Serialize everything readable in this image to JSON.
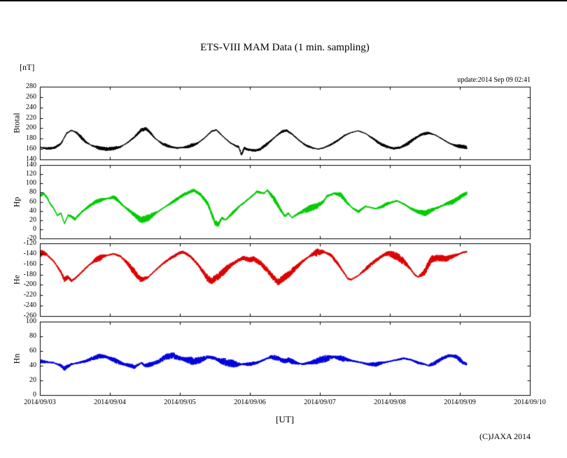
{
  "chart_data": {
    "type": "line",
    "title": "ETS-VIII MAM Data (1 min. sampling)",
    "y_unit_label": "[nT]",
    "update_label": "update:2014 Sep 09 02:41",
    "copyright": "(C)JAXA 2014",
    "x": {
      "label": "[UT]",
      "tick_labels": [
        "2014/09/03",
        "2014/09/04",
        "2014/09/05",
        "2014/09/06",
        "2014/09/07",
        "2014/09/08",
        "2014/09/09",
        "2014/09/10"
      ],
      "range_days": [
        0,
        7
      ],
      "grid": false,
      "unit": "days since 2014/09/03 00:00 UT"
    },
    "panels": [
      {
        "name": "Btotal",
        "color": "#000000",
        "ylim": [
          140,
          280
        ],
        "yticks": [
          280,
          260,
          240,
          220,
          200,
          180,
          160,
          140
        ],
        "noise_amplitude": 2.2,
        "points": [
          [
            0.0,
            163
          ],
          [
            0.1,
            161
          ],
          [
            0.2,
            162
          ],
          [
            0.3,
            170
          ],
          [
            0.38,
            190
          ],
          [
            0.45,
            196
          ],
          [
            0.52,
            192
          ],
          [
            0.58,
            184
          ],
          [
            0.65,
            174
          ],
          [
            0.75,
            166
          ],
          [
            0.85,
            162
          ],
          [
            0.95,
            160
          ],
          [
            1.05,
            161
          ],
          [
            1.15,
            164
          ],
          [
            1.25,
            172
          ],
          [
            1.35,
            183
          ],
          [
            1.45,
            197
          ],
          [
            1.52,
            199
          ],
          [
            1.58,
            191
          ],
          [
            1.65,
            180
          ],
          [
            1.75,
            170
          ],
          [
            1.85,
            165
          ],
          [
            1.95,
            162
          ],
          [
            2.05,
            163
          ],
          [
            2.15,
            166
          ],
          [
            2.25,
            171
          ],
          [
            2.35,
            181
          ],
          [
            2.45,
            194
          ],
          [
            2.52,
            197
          ],
          [
            2.58,
            189
          ],
          [
            2.65,
            180
          ],
          [
            2.72,
            172
          ],
          [
            2.8,
            166
          ],
          [
            2.84,
            164
          ],
          [
            2.88,
            149
          ],
          [
            2.92,
            162
          ],
          [
            2.97,
            159
          ],
          [
            3.02,
            158
          ],
          [
            3.08,
            157
          ],
          [
            3.15,
            160
          ],
          [
            3.25,
            170
          ],
          [
            3.35,
            182
          ],
          [
            3.45,
            193
          ],
          [
            3.52,
            196
          ],
          [
            3.6,
            189
          ],
          [
            3.7,
            177
          ],
          [
            3.8,
            167
          ],
          [
            3.9,
            162
          ],
          [
            3.97,
            160
          ],
          [
            4.05,
            162
          ],
          [
            4.15,
            168
          ],
          [
            4.25,
            176
          ],
          [
            4.35,
            186
          ],
          [
            4.45,
            192
          ],
          [
            4.55,
            195
          ],
          [
            4.65,
            190
          ],
          [
            4.75,
            181
          ],
          [
            4.85,
            171
          ],
          [
            4.95,
            165
          ],
          [
            5.05,
            161
          ],
          [
            5.15,
            163
          ],
          [
            5.25,
            170
          ],
          [
            5.35,
            180
          ],
          [
            5.45,
            188
          ],
          [
            5.55,
            191
          ],
          [
            5.65,
            187
          ],
          [
            5.75,
            179
          ],
          [
            5.85,
            171
          ],
          [
            5.95,
            166
          ],
          [
            6.02,
            165
          ],
          [
            6.1,
            163
          ]
        ]
      },
      {
        "name": "Hp",
        "color": "#00cc00",
        "ylim": [
          -20,
          140
        ],
        "yticks": [
          140,
          120,
          100,
          80,
          60,
          40,
          20,
          0,
          -20
        ],
        "noise_amplitude": 4.5,
        "points": [
          [
            0.0,
            72
          ],
          [
            0.05,
            78
          ],
          [
            0.1,
            70
          ],
          [
            0.15,
            55
          ],
          [
            0.2,
            45
          ],
          [
            0.25,
            30
          ],
          [
            0.3,
            35
          ],
          [
            0.35,
            12
          ],
          [
            0.4,
            30
          ],
          [
            0.45,
            28
          ],
          [
            0.5,
            22
          ],
          [
            0.55,
            30
          ],
          [
            0.6,
            38
          ],
          [
            0.7,
            50
          ],
          [
            0.8,
            60
          ],
          [
            0.9,
            65
          ],
          [
            1.0,
            68
          ],
          [
            1.05,
            70
          ],
          [
            1.1,
            65
          ],
          [
            1.2,
            50
          ],
          [
            1.3,
            38
          ],
          [
            1.4,
            25
          ],
          [
            1.45,
            20
          ],
          [
            1.55,
            25
          ],
          [
            1.65,
            35
          ],
          [
            1.75,
            45
          ],
          [
            1.85,
            55
          ],
          [
            1.95,
            65
          ],
          [
            2.05,
            75
          ],
          [
            2.15,
            82
          ],
          [
            2.2,
            85
          ],
          [
            2.3,
            75
          ],
          [
            2.4,
            55
          ],
          [
            2.45,
            35
          ],
          [
            2.5,
            15
          ],
          [
            2.55,
            10
          ],
          [
            2.6,
            25
          ],
          [
            2.65,
            20
          ],
          [
            2.75,
            35
          ],
          [
            2.85,
            50
          ],
          [
            2.95,
            62
          ],
          [
            3.05,
            75
          ],
          [
            3.1,
            82
          ],
          [
            3.2,
            78
          ],
          [
            3.25,
            85
          ],
          [
            3.35,
            65
          ],
          [
            3.45,
            40
          ],
          [
            3.5,
            28
          ],
          [
            3.55,
            35
          ],
          [
            3.6,
            25
          ],
          [
            3.7,
            35
          ],
          [
            3.8,
            42
          ],
          [
            3.9,
            48
          ],
          [
            3.95,
            50
          ],
          [
            4.05,
            60
          ],
          [
            4.1,
            72
          ],
          [
            4.2,
            78
          ],
          [
            4.3,
            75
          ],
          [
            4.35,
            65
          ],
          [
            4.45,
            48
          ],
          [
            4.55,
            38
          ],
          [
            4.65,
            50
          ],
          [
            4.7,
            48
          ],
          [
            4.8,
            45
          ],
          [
            4.9,
            50
          ],
          [
            4.95,
            55
          ],
          [
            5.05,
            60
          ],
          [
            5.1,
            62
          ],
          [
            5.2,
            55
          ],
          [
            5.3,
            45
          ],
          [
            5.4,
            38
          ],
          [
            5.5,
            35
          ],
          [
            5.6,
            42
          ],
          [
            5.7,
            48
          ],
          [
            5.8,
            55
          ],
          [
            5.9,
            60
          ],
          [
            6.0,
            70
          ],
          [
            6.05,
            75
          ],
          [
            6.1,
            78
          ]
        ]
      },
      {
        "name": "He",
        "color": "#dd0000",
        "ylim": [
          -260,
          -120
        ],
        "yticks": [
          -120,
          -140,
          -160,
          -180,
          -200,
          -220,
          -240,
          -260
        ],
        "noise_amplitude": 4.5,
        "points": [
          [
            0.0,
            -140
          ],
          [
            0.05,
            -138
          ],
          [
            0.1,
            -142
          ],
          [
            0.2,
            -155
          ],
          [
            0.3,
            -175
          ],
          [
            0.35,
            -190
          ],
          [
            0.4,
            -185
          ],
          [
            0.45,
            -192
          ],
          [
            0.5,
            -188
          ],
          [
            0.6,
            -175
          ],
          [
            0.7,
            -162
          ],
          [
            0.8,
            -152
          ],
          [
            0.9,
            -145
          ],
          [
            1.0,
            -142
          ],
          [
            1.05,
            -140
          ],
          [
            1.15,
            -145
          ],
          [
            1.25,
            -158
          ],
          [
            1.35,
            -175
          ],
          [
            1.4,
            -185
          ],
          [
            1.45,
            -190
          ],
          [
            1.55,
            -185
          ],
          [
            1.65,
            -172
          ],
          [
            1.75,
            -160
          ],
          [
            1.85,
            -150
          ],
          [
            1.95,
            -142
          ],
          [
            2.0,
            -138
          ],
          [
            2.05,
            -137
          ],
          [
            2.15,
            -145
          ],
          [
            2.25,
            -160
          ],
          [
            2.35,
            -178
          ],
          [
            2.4,
            -188
          ],
          [
            2.45,
            -192
          ],
          [
            2.5,
            -188
          ],
          [
            2.6,
            -178
          ],
          [
            2.7,
            -165
          ],
          [
            2.8,
            -155
          ],
          [
            2.9,
            -148
          ],
          [
            2.95,
            -150
          ],
          [
            3.0,
            -152
          ],
          [
            3.05,
            -150
          ],
          [
            3.15,
            -158
          ],
          [
            3.25,
            -172
          ],
          [
            3.35,
            -188
          ],
          [
            3.4,
            -195
          ],
          [
            3.45,
            -190
          ],
          [
            3.55,
            -180
          ],
          [
            3.65,
            -168
          ],
          [
            3.75,
            -155
          ],
          [
            3.85,
            -145
          ],
          [
            3.9,
            -140
          ],
          [
            3.95,
            -138
          ],
          [
            4.0,
            -137
          ],
          [
            4.05,
            -136
          ],
          [
            4.15,
            -142
          ],
          [
            4.25,
            -158
          ],
          [
            4.35,
            -178
          ],
          [
            4.4,
            -188
          ],
          [
            4.45,
            -190
          ],
          [
            4.55,
            -182
          ],
          [
            4.65,
            -170
          ],
          [
            4.75,
            -158
          ],
          [
            4.85,
            -148
          ],
          [
            4.9,
            -143
          ],
          [
            4.95,
            -140
          ],
          [
            5.0,
            -140
          ],
          [
            5.1,
            -145
          ],
          [
            5.2,
            -155
          ],
          [
            5.3,
            -170
          ],
          [
            5.35,
            -180
          ],
          [
            5.4,
            -185
          ],
          [
            5.5,
            -175
          ],
          [
            5.55,
            -160
          ],
          [
            5.6,
            -150
          ],
          [
            5.7,
            -148
          ],
          [
            5.8,
            -150
          ],
          [
            5.9,
            -145
          ],
          [
            6.0,
            -140
          ],
          [
            6.05,
            -137
          ],
          [
            6.1,
            -136
          ]
        ]
      },
      {
        "name": "Hn",
        "color": "#0000dd",
        "ylim": [
          0,
          100
        ],
        "yticks": [
          100,
          80,
          60,
          40,
          20,
          0
        ],
        "noise_amplitude": 3.2,
        "points": [
          [
            0.0,
            46
          ],
          [
            0.1,
            45
          ],
          [
            0.2,
            44
          ],
          [
            0.3,
            40
          ],
          [
            0.35,
            36
          ],
          [
            0.45,
            42
          ],
          [
            0.55,
            44
          ],
          [
            0.65,
            46
          ],
          [
            0.75,
            50
          ],
          [
            0.85,
            53
          ],
          [
            0.95,
            52
          ],
          [
            1.0,
            50
          ],
          [
            1.1,
            46
          ],
          [
            1.2,
            42
          ],
          [
            1.3,
            40
          ],
          [
            1.35,
            38
          ],
          [
            1.45,
            44
          ],
          [
            1.5,
            40
          ],
          [
            1.6,
            42
          ],
          [
            1.7,
            46
          ],
          [
            1.8,
            52
          ],
          [
            1.9,
            54
          ],
          [
            1.95,
            52
          ],
          [
            2.0,
            50
          ],
          [
            2.1,
            48
          ],
          [
            2.2,
            46
          ],
          [
            2.3,
            48
          ],
          [
            2.4,
            52
          ],
          [
            2.5,
            50
          ],
          [
            2.6,
            46
          ],
          [
            2.7,
            44
          ],
          [
            2.8,
            42
          ],
          [
            2.9,
            42
          ],
          [
            3.0,
            42
          ],
          [
            3.1,
            44
          ],
          [
            3.2,
            48
          ],
          [
            3.3,
            52
          ],
          [
            3.4,
            50
          ],
          [
            3.5,
            46
          ],
          [
            3.55,
            48
          ],
          [
            3.65,
            44
          ],
          [
            3.75,
            42
          ],
          [
            3.85,
            44
          ],
          [
            3.95,
            46
          ],
          [
            4.0,
            48
          ],
          [
            4.1,
            50
          ],
          [
            4.2,
            52
          ],
          [
            4.3,
            50
          ],
          [
            4.4,
            48
          ],
          [
            4.5,
            46
          ],
          [
            4.6,
            44
          ],
          [
            4.7,
            42
          ],
          [
            4.8,
            42
          ],
          [
            4.9,
            44
          ],
          [
            5.0,
            46
          ],
          [
            5.1,
            48
          ],
          [
            5.2,
            50
          ],
          [
            5.3,
            48
          ],
          [
            5.4,
            44
          ],
          [
            5.5,
            42
          ],
          [
            5.55,
            40
          ],
          [
            5.65,
            44
          ],
          [
            5.75,
            50
          ],
          [
            5.85,
            54
          ],
          [
            5.95,
            52
          ],
          [
            6.0,
            48
          ],
          [
            6.05,
            44
          ],
          [
            6.1,
            42
          ]
        ]
      }
    ]
  }
}
